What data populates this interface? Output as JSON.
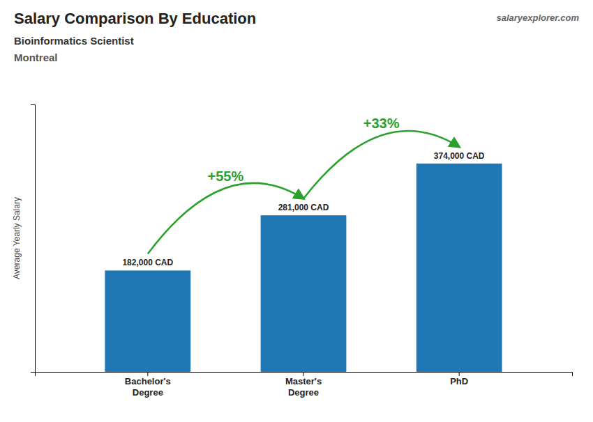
{
  "chart_data": {
    "type": "bar",
    "title": "Salary Comparison By Education",
    "subtitle": [
      "Bioinformatics Scientist",
      "Montreal"
    ],
    "source": "salaryexplorer.com",
    "y_label": "Average Yearly Salary",
    "categories": [
      "Bachelor's\nDegree",
      "Master's\nDegree",
      "PhD"
    ],
    "values": [
      182000,
      281000,
      374000
    ],
    "value_labels": [
      "182,000 CAD",
      "281,000 CAD",
      "374,000 CAD"
    ],
    "data_labels": true,
    "annotations": [
      "+55%",
      "+33%"
    ],
    "ylim": [
      0,
      480000
    ],
    "tick_labels": "x",
    "grid": false
  }
}
